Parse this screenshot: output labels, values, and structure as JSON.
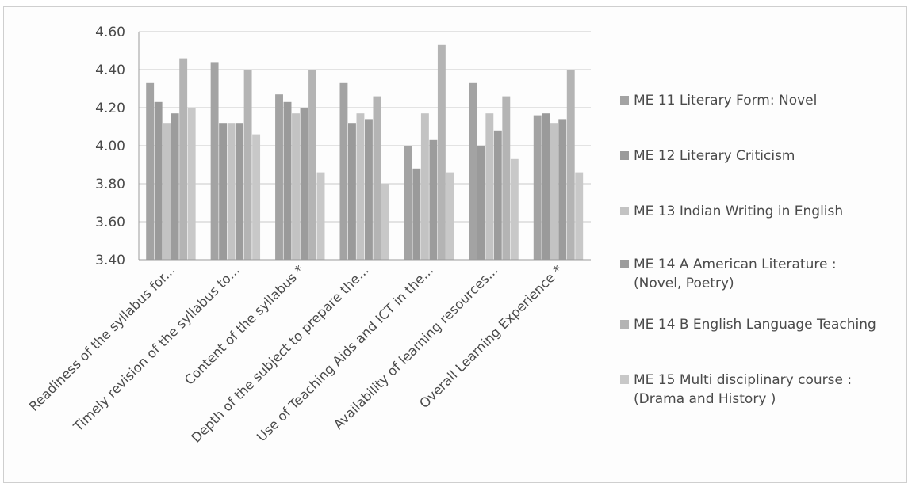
{
  "chart_data": {
    "type": "bar",
    "title": "",
    "xlabel": "",
    "ylabel": "",
    "ylim": [
      3.4,
      4.6
    ],
    "yticks": [
      "4.60",
      "4.40",
      "4.20",
      "4.00",
      "3.80",
      "3.60",
      "3.40"
    ],
    "grid": true,
    "legend_position": "right",
    "categories": [
      "Readiness of the syllabus for...",
      "Timely revision of the syllabus to...",
      "Content of the syllabus *",
      "Depth of the subject to prepare the...",
      "Use of Teaching Aids and ICT in the...",
      "Availability of learning resources...",
      "Overall Learning Experience *"
    ],
    "series": [
      {
        "name": "ME 11 Literary Form: Novel",
        "legend_lines": [
          "ME 11 Literary Form: Novel"
        ],
        "color": "#a3a3a3",
        "values": [
          4.33,
          4.44,
          4.27,
          4.33,
          4.0,
          4.33,
          4.16
        ]
      },
      {
        "name": "ME 12 Literary Criticism",
        "legend_lines": [
          "ME 12 Literary Criticism"
        ],
        "color": "#9a9a9a",
        "values": [
          4.23,
          4.12,
          4.23,
          4.12,
          3.88,
          4.0,
          4.17
        ]
      },
      {
        "name": "ME 13 Indian Writing in English",
        "legend_lines": [
          "ME 13 Indian Writing in English"
        ],
        "color": "#c3c3c3",
        "values": [
          4.12,
          4.12,
          4.17,
          4.17,
          4.17,
          4.17,
          4.12
        ]
      },
      {
        "name": "ME 14 A American Literature : (Novel, Poetry)",
        "legend_lines": [
          "ME 14 A American Literature :",
          "(Novel, Poetry)"
        ],
        "color": "#9c9c9c",
        "values": [
          4.17,
          4.12,
          4.2,
          4.14,
          4.03,
          4.08,
          4.14
        ]
      },
      {
        "name": "ME 14 B English Language Teaching",
        "legend_lines": [
          "ME 14 B English Language Teaching"
        ],
        "color": "#b4b4b4",
        "values": [
          4.46,
          4.4,
          4.4,
          4.26,
          4.53,
          4.26,
          4.4
        ]
      },
      {
        "name": "ME 15 Multi disciplinary course : (Drama and History )",
        "legend_lines": [
          "ME 15 Multi disciplinary course :",
          "(Drama and History )"
        ],
        "color": "#c8c8c8",
        "values": [
          4.2,
          4.06,
          3.86,
          3.8,
          3.86,
          3.93,
          3.86
        ]
      }
    ]
  }
}
